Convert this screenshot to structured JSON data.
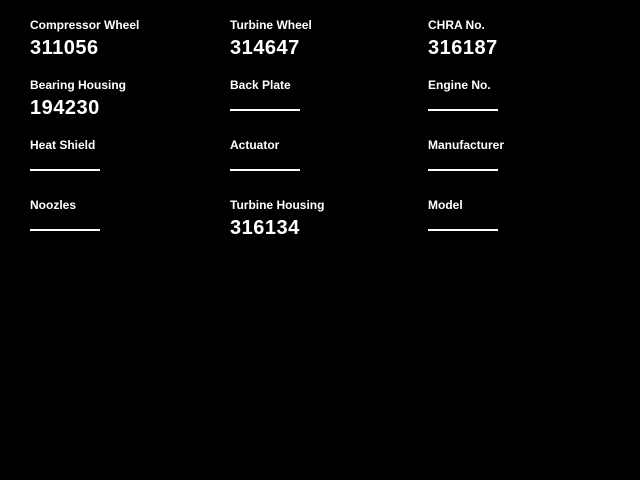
{
  "page": {
    "background_color": "#000000",
    "text_color": "#ffffff"
  },
  "grid": {
    "columns": [
      {
        "fields": [
          {
            "label": "Compressor Wheel",
            "value": "311056"
          },
          {
            "label": "Bearing Housing",
            "value": "194230"
          },
          {
            "label": "Heat Shield",
            "value": ""
          },
          {
            "label": "Noozles",
            "value": ""
          }
        ]
      },
      {
        "fields": [
          {
            "label": "Turbine Wheel",
            "value": "314647"
          },
          {
            "label": "Back Plate",
            "value": ""
          },
          {
            "label": "Actuator",
            "value": ""
          },
          {
            "label": "Turbine Housing",
            "value": "316134"
          }
        ]
      },
      {
        "fields": [
          {
            "label": "CHRA No.",
            "value": "316187"
          },
          {
            "label": "Engine No.",
            "value": ""
          },
          {
            "label": "Manufacturer",
            "value": ""
          },
          {
            "label": "Model",
            "value": ""
          }
        ]
      }
    ]
  }
}
